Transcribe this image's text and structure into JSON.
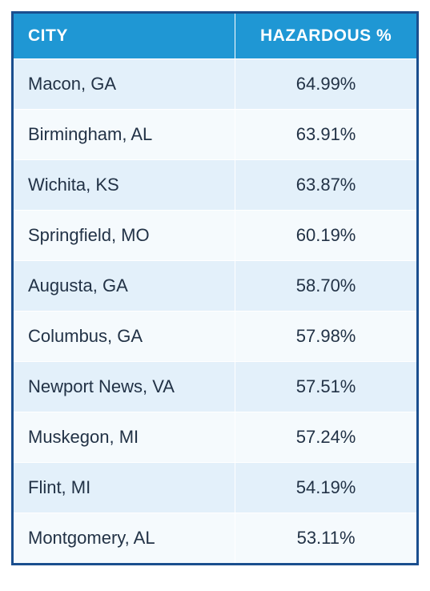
{
  "table": {
    "type": "table",
    "border_color": "#1a4e8e",
    "border_width": 3,
    "header": {
      "background_color": "#1f97d4",
      "text_color": "#ffffff",
      "font_size_pt": 16,
      "font_weight": 700,
      "columns": [
        {
          "label": "CITY",
          "width_pct": 55,
          "align": "left"
        },
        {
          "label": "HAZARDOUS %",
          "width_pct": 45,
          "align": "center"
        }
      ]
    },
    "body": {
      "font_size_pt": 17,
      "text_color": "#223246",
      "row_background_odd": "#e3f0fa",
      "row_background_even": "#f5fafd",
      "cell_border_color": "#ffffff",
      "rows": [
        {
          "city": "Macon, GA",
          "hazardous_pct": "64.99%"
        },
        {
          "city": "Birmingham, AL",
          "hazardous_pct": "63.91%"
        },
        {
          "city": "Wichita, KS",
          "hazardous_pct": "63.87%"
        },
        {
          "city": "Springfield, MO",
          "hazardous_pct": "60.19%"
        },
        {
          "city": "Augusta, GA",
          "hazardous_pct": "58.70%"
        },
        {
          "city": "Columbus, GA",
          "hazardous_pct": "57.98%"
        },
        {
          "city": "Newport News, VA",
          "hazardous_pct": "57.51%"
        },
        {
          "city": "Muskegon, MI",
          "hazardous_pct": "57.24%"
        },
        {
          "city": "Flint, MI",
          "hazardous_pct": "54.19%"
        },
        {
          "city": "Montgomery, AL",
          "hazardous_pct": "53.11%"
        }
      ]
    }
  }
}
